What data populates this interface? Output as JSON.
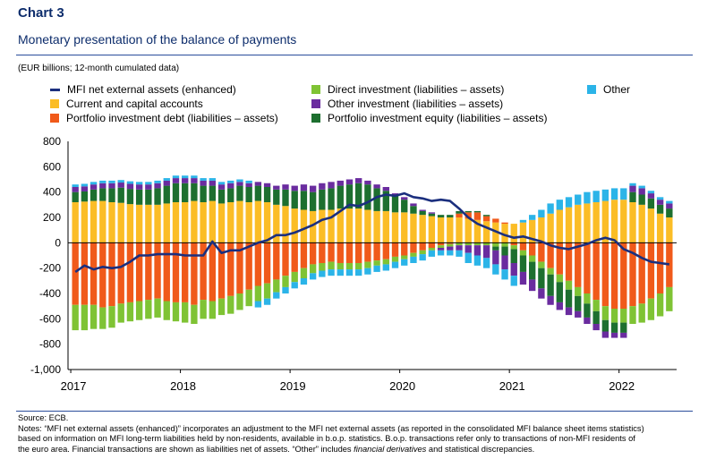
{
  "header": {
    "title": "Chart 3",
    "subtitle": "Monetary presentation of the balance of payments",
    "unit": "(EUR billions; 12-month cumulated data)"
  },
  "legend": {
    "mfi": "MFI net external assets (enhanced)",
    "cca": "Current and capital accounts",
    "pid": "Portfolio investment debt (liabilities – assets)",
    "di": "Direct investment (liabilities – assets)",
    "oi": "Other investment (liabilities – assets)",
    "pie": "Portfolio investment equity (liabilities – assets)",
    "other": "Other"
  },
  "notes": {
    "source": "Source: ECB.",
    "line1": "Notes: “MFI net external assets (enhanced)” incorporates an adjustment to the MFI net external assets (as reported in the consolidated MFI balance sheet items statistics)",
    "line2": "based on information on MFI long-term liabilities held by non-residents, available in b.o.p. statistics. B.o.p. transactions refer only to transactions of non-MFI residents of",
    "line3a": "the euro area. Financial transactions are shown as liabilities net of assets. “Other” includes ",
    "line3b": "financial derivatives",
    "line3c": " and statistical discrepancies."
  },
  "chart_data": {
    "type": "bar",
    "stacked": true,
    "ylim": [
      -1000,
      800
    ],
    "yticks": [
      800,
      600,
      400,
      200,
      0,
      -200,
      -400,
      -600,
      -800,
      -1000
    ],
    "ytick_labels": [
      "800",
      "600",
      "400",
      "200",
      "0",
      "-200",
      "-400",
      "-600",
      "-800",
      "-1,000"
    ],
    "xtick_labels": [
      "2017",
      "2018",
      "2019",
      "2020",
      "2021",
      "2022"
    ],
    "x_start": "2017-01",
    "x_end": "2022-06",
    "colors": {
      "cca": "#fbbd26",
      "pid": "#f05a1a",
      "di": "#7fc334",
      "oi": "#6a2c9f",
      "pie": "#1d6f2f",
      "other": "#2bb4e8",
      "mfi": "#1b2f7e"
    },
    "series": [
      {
        "name": "Current and capital accounts",
        "key": "cca",
        "values": [
          320,
          325,
          330,
          330,
          320,
          315,
          305,
          300,
          300,
          300,
          310,
          320,
          320,
          330,
          320,
          330,
          310,
          320,
          330,
          320,
          330,
          320,
          300,
          290,
          270,
          260,
          250,
          260,
          260,
          270,
          270,
          270,
          260,
          250,
          250,
          240,
          240,
          230,
          220,
          210,
          200,
          200,
          200,
          190,
          180,
          170,
          160,
          150,
          150,
          160,
          180,
          200,
          230,
          260,
          280,
          300,
          310,
          320,
          330,
          340,
          340,
          320,
          300,
          270,
          230,
          200
        ]
      },
      {
        "name": "Portfolio investment debt (liabilities – assets)",
        "key": "pid",
        "values": [
          -490,
          -490,
          -490,
          -510,
          -500,
          -480,
          -470,
          -460,
          -450,
          -440,
          -460,
          -470,
          -470,
          -490,
          -450,
          -460,
          -440,
          -420,
          -400,
          -370,
          -340,
          -320,
          -290,
          -260,
          -230,
          -200,
          -170,
          -160,
          -150,
          -160,
          -160,
          -160,
          -150,
          -140,
          -130,
          -110,
          -100,
          -80,
          -60,
          -40,
          -20,
          -10,
          30,
          50,
          60,
          40,
          30,
          10,
          -20,
          -60,
          -100,
          -150,
          -200,
          -250,
          -300,
          -350,
          -400,
          -450,
          -500,
          -520,
          -520,
          -500,
          -480,
          -440,
          -400,
          -350
        ]
      },
      {
        "name": "Direct investment (liabilities – assets)",
        "key": "di",
        "values": [
          -200,
          -200,
          -190,
          -170,
          -170,
          -150,
          -150,
          -150,
          -150,
          -150,
          -150,
          -150,
          -160,
          -150,
          -150,
          -140,
          -130,
          -140,
          -130,
          -130,
          -120,
          -120,
          -100,
          -90,
          -80,
          -80,
          -70,
          -60,
          -60,
          -50,
          -50,
          -50,
          -50,
          -40,
          -40,
          -40,
          -30,
          -30,
          -30,
          -20,
          -20,
          -20,
          -20,
          -20,
          -20,
          -20,
          -30,
          -30,
          -30,
          -40,
          -50,
          -50,
          -50,
          -60,
          -70,
          -70,
          -80,
          -90,
          -110,
          -110,
          -110,
          -140,
          -150,
          -170,
          -180,
          -190
        ]
      },
      {
        "name": "Portfolio investment equity (liabilities – assets)",
        "key": "pie",
        "values": [
          80,
          80,
          90,
          100,
          110,
          120,
          120,
          120,
          120,
          130,
          140,
          150,
          150,
          140,
          130,
          120,
          110,
          110,
          120,
          120,
          120,
          120,
          120,
          130,
          140,
          150,
          150,
          160,
          170,
          180,
          190,
          200,
          200,
          180,
          160,
          130,
          100,
          60,
          30,
          20,
          20,
          20,
          20,
          10,
          10,
          10,
          -30,
          -70,
          -110,
          -130,
          -140,
          -160,
          -170,
          -160,
          -140,
          -120,
          -110,
          -100,
          -90,
          -80,
          -80,
          80,
          80,
          80,
          70,
          70
        ]
      },
      {
        "name": "Other investment (liabilities – assets)",
        "key": "oi",
        "values": [
          40,
          40,
          40,
          40,
          40,
          40,
          40,
          40,
          40,
          40,
          40,
          40,
          40,
          40,
          40,
          40,
          40,
          40,
          30,
          30,
          30,
          30,
          30,
          40,
          40,
          50,
          50,
          50,
          50,
          40,
          40,
          40,
          30,
          30,
          30,
          20,
          20,
          20,
          10,
          10,
          -20,
          -30,
          -40,
          -60,
          -80,
          -100,
          -110,
          -110,
          -100,
          -100,
          -90,
          -80,
          -70,
          -60,
          -60,
          -50,
          -50,
          -50,
          -50,
          -40,
          -40,
          50,
          50,
          40,
          40,
          40
        ]
      },
      {
        "name": "Other",
        "key": "other",
        "values": [
          20,
          20,
          20,
          20,
          20,
          20,
          20,
          20,
          20,
          20,
          20,
          20,
          20,
          20,
          20,
          20,
          20,
          20,
          20,
          20,
          -50,
          -50,
          -50,
          -50,
          -50,
          -50,
          -50,
          -50,
          -50,
          -50,
          -50,
          -50,
          -50,
          -50,
          -50,
          -50,
          -50,
          -50,
          -50,
          -50,
          -40,
          -40,
          -50,
          -80,
          -80,
          -80,
          -80,
          -80,
          -80,
          20,
          40,
          60,
          80,
          80,
          80,
          80,
          90,
          90,
          90,
          90,
          90,
          20,
          20,
          20,
          20,
          20
        ]
      },
      {
        "name": "MFI net external assets (enhanced)",
        "key": "mfi",
        "type": "line",
        "values": [
          -230,
          -180,
          -210,
          -190,
          -200,
          -190,
          -150,
          -100,
          -100,
          -90,
          -90,
          -90,
          -100,
          -100,
          -100,
          10,
          -80,
          -60,
          -60,
          -30,
          0,
          20,
          60,
          60,
          80,
          110,
          140,
          180,
          200,
          250,
          300,
          290,
          320,
          360,
          380,
          370,
          390,
          360,
          350,
          330,
          340,
          330,
          270,
          200,
          150,
          120,
          90,
          60,
          40,
          50,
          30,
          10,
          -20,
          -40,
          -50,
          -30,
          -10,
          20,
          40,
          20,
          -50,
          -80,
          -120,
          -150,
          -160,
          -170
        ]
      }
    ]
  }
}
